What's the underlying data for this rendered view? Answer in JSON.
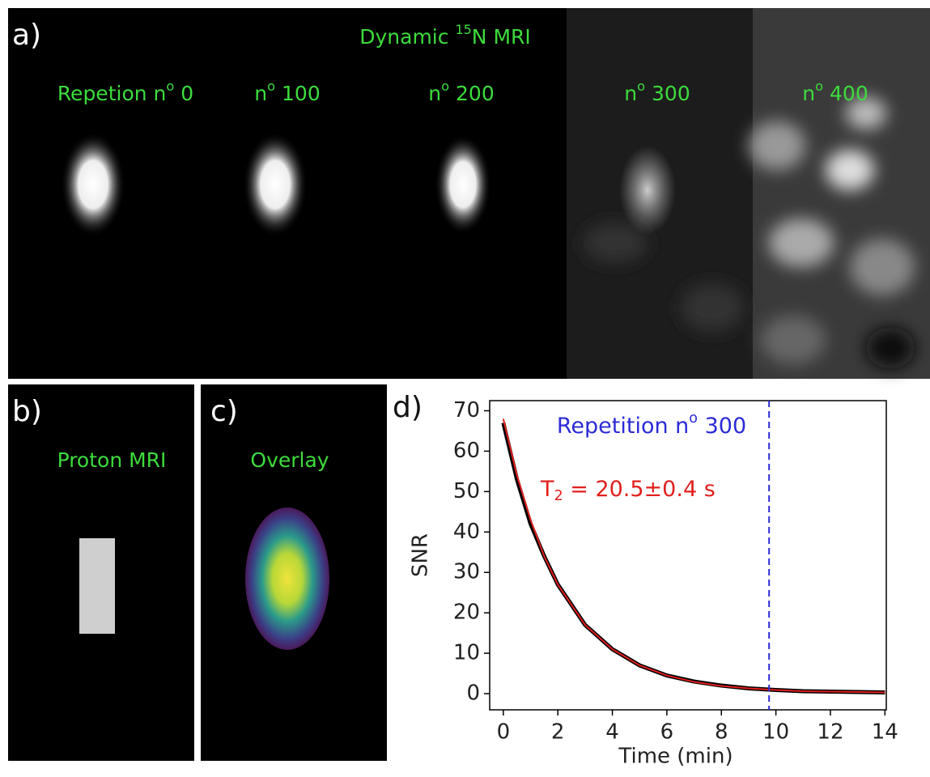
{
  "panel_a": {
    "label": "a)",
    "title": {
      "pre": "Dynamic ",
      "sup": "15",
      "post": "N MRI"
    },
    "frames": [
      {
        "pre": "Repetion n",
        "sup": "o",
        "post": " 0"
      },
      {
        "pre": "n",
        "sup": "o",
        "post": " 100"
      },
      {
        "pre": "n",
        "sup": "o",
        "post": " 200"
      },
      {
        "pre": "n",
        "sup": "o",
        "post": " 300"
      },
      {
        "pre": "n",
        "sup": "o",
        "post": " 400"
      }
    ]
  },
  "panel_b": {
    "label": "b)",
    "title": "Proton MRI"
  },
  "panel_c": {
    "label": "c)",
    "title": "Overlay"
  },
  "panel_d": {
    "label": "d)"
  },
  "chart_data": {
    "type": "line",
    "xlabel": "Time (min)",
    "ylabel": "SNR",
    "x": [
      0,
      0.5,
      1,
      1.5,
      2,
      3,
      4,
      5,
      6,
      7,
      8,
      9,
      10,
      11,
      12,
      13,
      14
    ],
    "series": [
      {
        "color": "#000000",
        "values": [
          67,
          53,
          42,
          34,
          27,
          17,
          11,
          7,
          4.5,
          3,
          2,
          1.3,
          0.9,
          0.6,
          0.5,
          0.4,
          0.3
        ]
      },
      {
        "color": "#e0201e",
        "values": [
          68,
          54,
          43,
          34,
          27,
          17,
          11,
          7,
          4.5,
          2.9,
          1.9,
          1.3,
          0.9,
          0.6,
          0.5,
          0.4,
          0.3
        ]
      }
    ],
    "xlim": [
      -0.5,
      14.05
    ],
    "ylim": [
      -4,
      72.5
    ],
    "xticks": [
      0,
      2,
      4,
      6,
      8,
      10,
      12,
      14
    ],
    "yticks": [
      0,
      10,
      20,
      30,
      40,
      50,
      60,
      70
    ],
    "vline": {
      "x": 9.75,
      "color": "#2b2bd6",
      "label": {
        "pre": "Repetition n",
        "sup": "o",
        "post": " 300"
      }
    },
    "annotation": {
      "pre": "T",
      "sub": "2",
      "post": " = 20.5±0.4 s",
      "color": "#e0201e"
    }
  }
}
